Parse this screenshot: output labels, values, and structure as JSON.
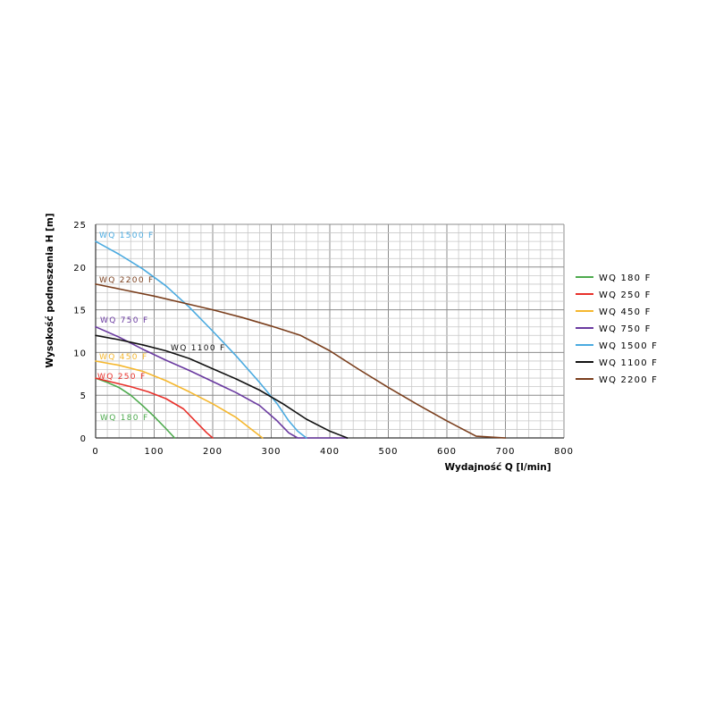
{
  "chart_data": {
    "type": "line",
    "xlabel": "Wydajność Q [l/min]",
    "ylabel": "Wysokość podnoszenia H [m]",
    "xlim": [
      0,
      800
    ],
    "ylim": [
      0,
      25
    ],
    "xticks": [
      0,
      100,
      200,
      300,
      400,
      500,
      600,
      700,
      800
    ],
    "yticks": [
      0,
      5,
      10,
      15,
      20,
      25
    ],
    "grid": true,
    "legend_position": "right",
    "series": [
      {
        "name": "WQ 180 F",
        "color": "#4daa4d",
        "annotation": "WQ 180 F",
        "x": [
          0,
          20,
          40,
          60,
          80,
          100,
          120,
          135
        ],
        "y": [
          7,
          6.5,
          5.9,
          5.0,
          3.8,
          2.5,
          1.1,
          0
        ]
      },
      {
        "name": "WQ 250 F",
        "color": "#e8302a",
        "annotation": "WQ 250 F",
        "x": [
          0,
          30,
          60,
          90,
          120,
          150,
          170,
          190,
          200
        ],
        "y": [
          7,
          6.5,
          6.0,
          5.4,
          4.6,
          3.4,
          2.0,
          0.6,
          0
        ]
      },
      {
        "name": "WQ 450 F",
        "color": "#f5b72e",
        "annotation": "WQ 450 F",
        "x": [
          0,
          40,
          80,
          120,
          160,
          200,
          240,
          270,
          285
        ],
        "y": [
          9,
          8.5,
          7.8,
          6.7,
          5.4,
          4.0,
          2.4,
          0.8,
          0
        ]
      },
      {
        "name": "WQ 750 F",
        "color": "#6a3aa0",
        "annotation": "WQ 750 F",
        "x": [
          0,
          40,
          80,
          120,
          160,
          200,
          240,
          280,
          310,
          330,
          345,
          360,
          400,
          430
        ],
        "y": [
          13,
          11.8,
          10.4,
          9.1,
          7.9,
          6.6,
          5.3,
          3.8,
          2.0,
          0.6,
          0,
          0,
          0,
          0
        ]
      },
      {
        "name": "WQ 1500 F",
        "color": "#4aaae0",
        "annotation": "WQ 1500 F",
        "x": [
          0,
          40,
          80,
          120,
          160,
          200,
          240,
          280,
          310,
          330,
          345,
          360
        ],
        "y": [
          23,
          21.5,
          19.8,
          17.8,
          15.3,
          12.5,
          9.6,
          6.5,
          4.0,
          2.0,
          0.8,
          0
        ]
      },
      {
        "name": "WQ 1100 F",
        "color": "#111111",
        "annotation": "WQ 1100 F",
        "x": [
          0,
          40,
          80,
          120,
          160,
          200,
          240,
          280,
          320,
          360,
          400,
          430
        ],
        "y": [
          12,
          11.5,
          10.9,
          10.2,
          9.3,
          8.1,
          6.9,
          5.6,
          4.0,
          2.2,
          0.8,
          0
        ]
      },
      {
        "name": "WQ 2200 F",
        "color": "#7a3e1c",
        "annotation": "WQ 2200 F",
        "x": [
          0,
          50,
          100,
          150,
          200,
          250,
          300,
          350,
          400,
          450,
          500,
          550,
          600,
          650,
          700
        ],
        "y": [
          18,
          17.3,
          16.6,
          15.8,
          15.0,
          14.1,
          13.1,
          12.0,
          10.2,
          8.0,
          5.9,
          3.9,
          2.0,
          0.2,
          0
        ]
      }
    ]
  }
}
